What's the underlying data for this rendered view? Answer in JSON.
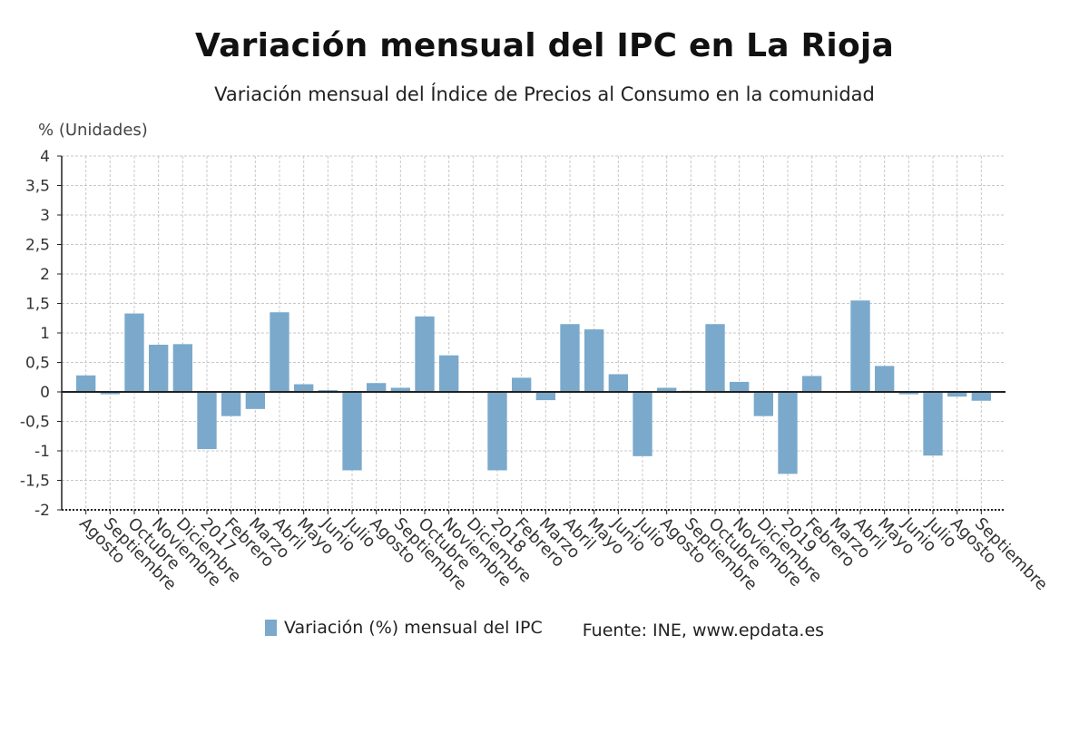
{
  "title": "Variación mensual del IPC en La Rioja",
  "subtitle": "Variación mensual del Índice de Precios al Consumo en la comunidad",
  "units": "% (Unidades)",
  "legend": {
    "series_label": "Variación (%) mensual del IPC",
    "source": "Fuente: INE, www.epdata.es"
  },
  "colors": {
    "bar": "#7aa9cc",
    "axis": "#222222",
    "grid": "#c8c8c8"
  },
  "chart_data": {
    "type": "bar",
    "title": "Variación mensual del IPC en La Rioja",
    "subtitle": "Variación mensual del Índice de Precios al Consumo en la comunidad",
    "ylabel": "% (Unidades)",
    "ylim": [
      -2,
      4
    ],
    "yticks": [
      4,
      3.5,
      3,
      2.5,
      2,
      1.5,
      1,
      0.5,
      0,
      -0.5,
      -1,
      -1.5,
      -2
    ],
    "ytick_labels": [
      "4",
      "3,5",
      "3",
      "2,5",
      "2",
      "1,5",
      "1",
      "0,5",
      "0",
      "-0,5",
      "-1",
      "-1,5",
      "-2"
    ],
    "grid": true,
    "legend_position": "bottom",
    "categories": [
      "Agosto",
      "Septiembre",
      "Octubre",
      "Noviembre",
      "Diciembre",
      "2017",
      "Febrero",
      "Marzo",
      "Abril",
      "Mayo",
      "Junio",
      "Julio",
      "Agosto",
      "Septiembre",
      "Octubre",
      "Noviembre",
      "Diciembre",
      "2018",
      "Febrero",
      "Marzo",
      "Abril",
      "Mayo",
      "Junio",
      "Julio",
      "Agosto",
      "Septiembre",
      "Octubre",
      "Noviembre",
      "Diciembre",
      "2019",
      "Febrero",
      "Marzo",
      "Abril",
      "Mayo",
      "Junio",
      "Julio",
      "Agosto",
      "Septiembre"
    ],
    "series": [
      {
        "name": "Variación (%) mensual del IPC",
        "values": [
          0.28,
          -0.04,
          1.33,
          0.8,
          0.81,
          -0.97,
          -0.41,
          -0.29,
          1.35,
          0.13,
          0.03,
          -1.33,
          0.15,
          0.07,
          1.28,
          0.62,
          0.0,
          -1.33,
          0.24,
          -0.14,
          1.15,
          1.06,
          0.3,
          -1.09,
          0.07,
          0.02,
          1.15,
          0.17,
          -0.41,
          -1.39,
          0.27,
          0.0,
          1.55,
          0.44,
          -0.04,
          -1.08,
          -0.08,
          -0.15
        ]
      }
    ]
  }
}
